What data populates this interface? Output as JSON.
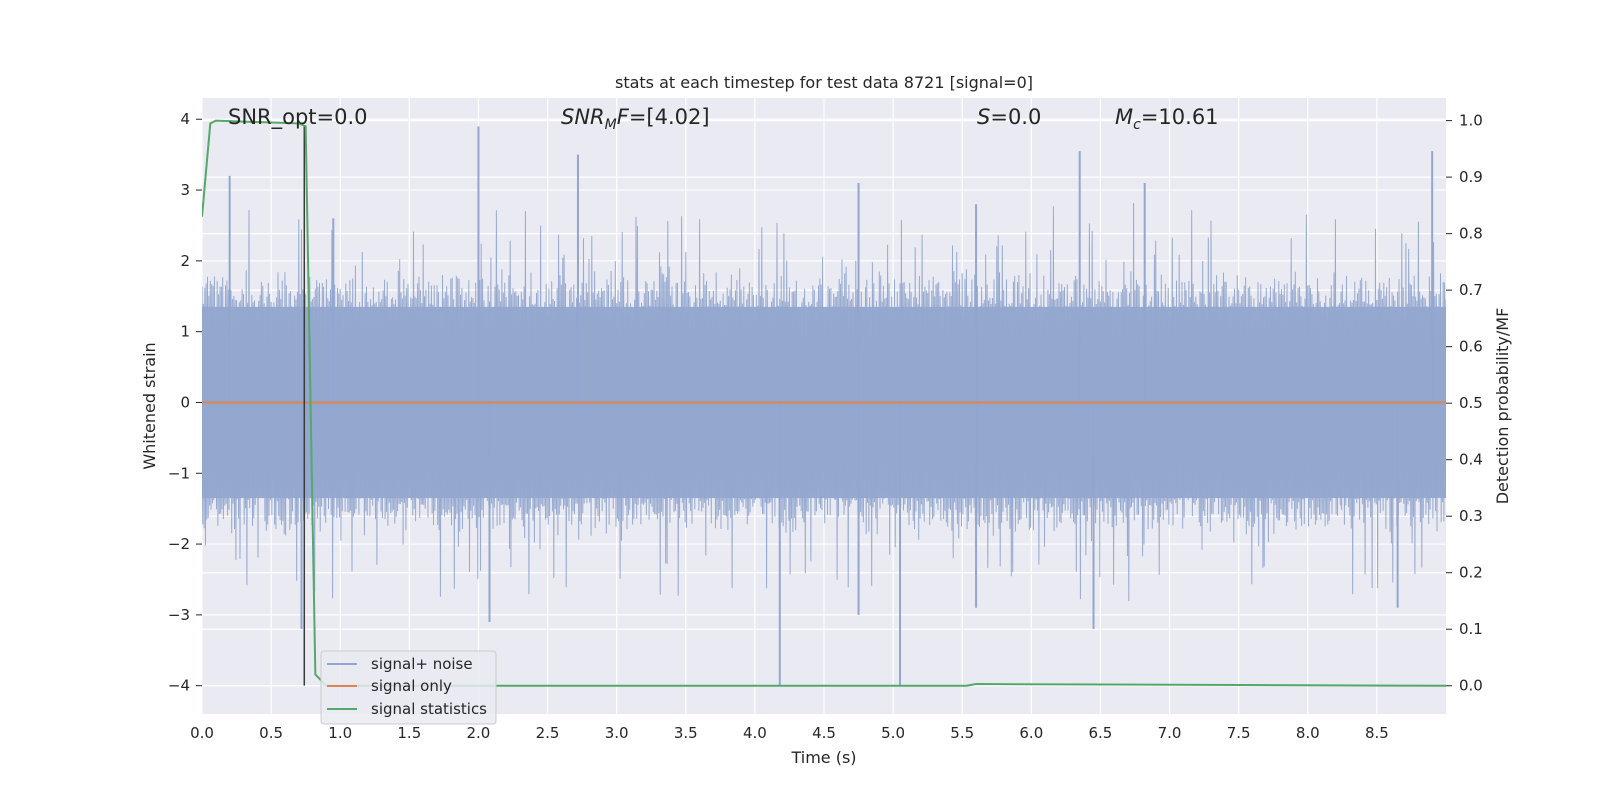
{
  "chart_data": {
    "type": "line",
    "title": "stats at each timestep for test data 8721 [signal=0]",
    "xlabel": "Time (s)",
    "ylabel": "Whitened strain",
    "ylabel_right": "Detection probability/MF",
    "xlim": [
      0.0,
      9.0
    ],
    "ylim": [
      -4.4,
      4.3
    ],
    "ylim_right": [
      -0.05,
      1.04
    ],
    "xticks": [
      0.0,
      0.5,
      1.0,
      1.5,
      2.0,
      2.5,
      3.0,
      3.5,
      4.0,
      4.5,
      5.0,
      5.5,
      6.0,
      6.5,
      7.0,
      7.5,
      8.0,
      8.5
    ],
    "xtick_labels": [
      "0.0",
      "0.5",
      "1.0",
      "1.5",
      "2.0",
      "2.5",
      "3.0",
      "3.5",
      "4.0",
      "4.5",
      "5.0",
      "5.5",
      "6.0",
      "6.5",
      "7.0",
      "7.5",
      "8.0",
      "8.5"
    ],
    "yticks": [
      -4,
      -3,
      -2,
      -1,
      0,
      1,
      2,
      3,
      4
    ],
    "ytick_labels": [
      "−4",
      "−3",
      "−2",
      "−1",
      "0",
      "1",
      "2",
      "3",
      "4"
    ],
    "yticks_right": [
      0.0,
      0.1,
      0.2,
      0.3,
      0.4,
      0.5,
      0.6,
      0.7,
      0.8,
      0.9,
      1.0
    ],
    "ytick_labels_right": [
      "0.0",
      "0.1",
      "0.2",
      "0.3",
      "0.4",
      "0.5",
      "0.6",
      "0.7",
      "0.8",
      "0.9",
      "1.0"
    ],
    "grid": true,
    "legend_position": "bottom-left",
    "annotations": {
      "snr_opt": {
        "main": "SNR_opt=0.0"
      },
      "snr_mf": {
        "sym": "SNR",
        "sub": "M",
        "sym2": "F",
        "rest": "=[4.02]"
      },
      "s": {
        "sym": "S",
        "rest": "=0.0"
      },
      "mc": {
        "sym": "M",
        "sub": "c",
        "rest": "=10.61"
      }
    },
    "series": [
      {
        "name": "signal+ noise",
        "color": "#92a6cf",
        "axis": "left",
        "kind": "noise",
        "peaks_up": [
          [
            0.2,
            3.2
          ],
          [
            0.95,
            2.6
          ],
          [
            2.0,
            3.9
          ],
          [
            2.72,
            3.5
          ],
          [
            4.75,
            3.1
          ],
          [
            5.6,
            2.8
          ],
          [
            6.35,
            3.55
          ],
          [
            6.82,
            3.1
          ],
          [
            8.9,
            3.55
          ]
        ],
        "peaks_down": [
          [
            0.72,
            -3.2
          ],
          [
            2.08,
            -3.1
          ],
          [
            4.18,
            -4.0
          ],
          [
            4.75,
            -3.0
          ],
          [
            5.05,
            -4.0
          ],
          [
            5.6,
            -2.9
          ],
          [
            6.45,
            -3.2
          ],
          [
            8.65,
            -2.9
          ]
        ]
      },
      {
        "name": "signal only",
        "color": "#dd8452",
        "axis": "left",
        "x": [
          0.0,
          9.0
        ],
        "y": [
          0.0,
          0.0
        ]
      },
      {
        "name": "signal statistics",
        "color": "#55a868",
        "axis": "right",
        "x": [
          0.0,
          0.06,
          0.1,
          0.7,
          0.75,
          0.82,
          0.9,
          5.45,
          5.53,
          5.6,
          9.0
        ],
        "y": [
          0.83,
          0.995,
          1.0,
          0.995,
          0.99,
          0.02,
          0.0,
          0.0,
          0.0,
          0.003,
          0.0
        ]
      }
    ],
    "marker_line": {
      "x": 0.74,
      "y_from": -4.0,
      "y_to": 3.9,
      "color": "#3b3b3b"
    }
  }
}
